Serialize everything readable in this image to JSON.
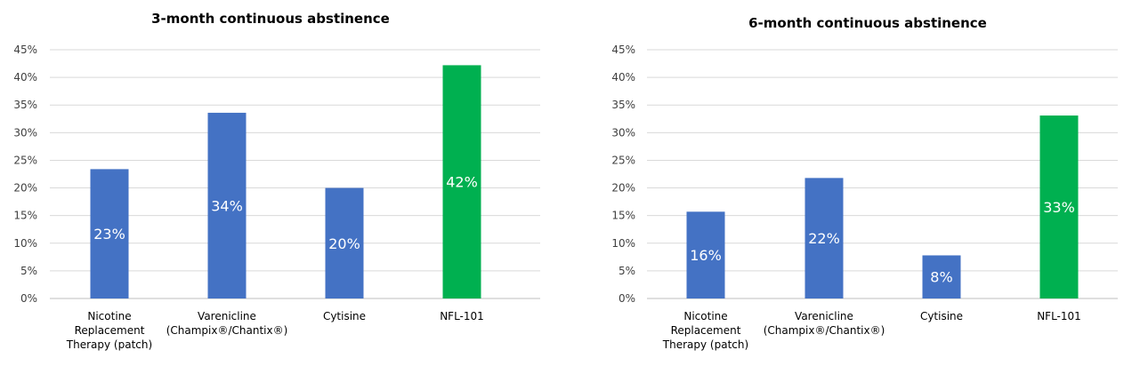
{
  "colors": {
    "default_bar": "#4472C4",
    "highlight_bar": "#00B050",
    "grid": "#D9D9D9",
    "axis": "#BFBFBF"
  },
  "chart_data": [
    {
      "type": "bar",
      "title": "3-month continuous abstinence",
      "categories": [
        [
          "Nicotine",
          "Replacement",
          "Therapy (patch)"
        ],
        [
          "Varenicline",
          "(Champix®/Chantix®)"
        ],
        [
          "Cytisine"
        ],
        [
          "NFL-101"
        ]
      ],
      "values": [
        23.4,
        33.6,
        20.0,
        42.2
      ],
      "data_labels": [
        "23%",
        "34%",
        "20%",
        "42%"
      ],
      "highlight_index": 3,
      "yticks": [
        "0%",
        "5%",
        "10%",
        "15%",
        "20%",
        "25%",
        "30%",
        "35%",
        "40%",
        "45%"
      ],
      "ylim": [
        0,
        45
      ],
      "xlabel": "",
      "ylabel": "",
      "grid": true,
      "legend": false
    },
    {
      "type": "bar",
      "title": "6-month continuous abstinence",
      "categories": [
        [
          "Nicotine",
          "Replacement",
          "Therapy (patch)"
        ],
        [
          "Varenicline",
          "(Champix®/Chantix®)"
        ],
        [
          "Cytisine"
        ],
        [
          "NFL-101"
        ]
      ],
      "values": [
        15.7,
        21.8,
        7.8,
        33.1
      ],
      "data_labels": [
        "16%",
        "22%",
        "8%",
        "33%"
      ],
      "highlight_index": 3,
      "yticks": [
        "0%",
        "5%",
        "10%",
        "15%",
        "20%",
        "25%",
        "30%",
        "35%",
        "40%",
        "45%"
      ],
      "ylim": [
        0,
        45
      ],
      "xlabel": "",
      "ylabel": "",
      "grid": true,
      "legend": false
    }
  ]
}
